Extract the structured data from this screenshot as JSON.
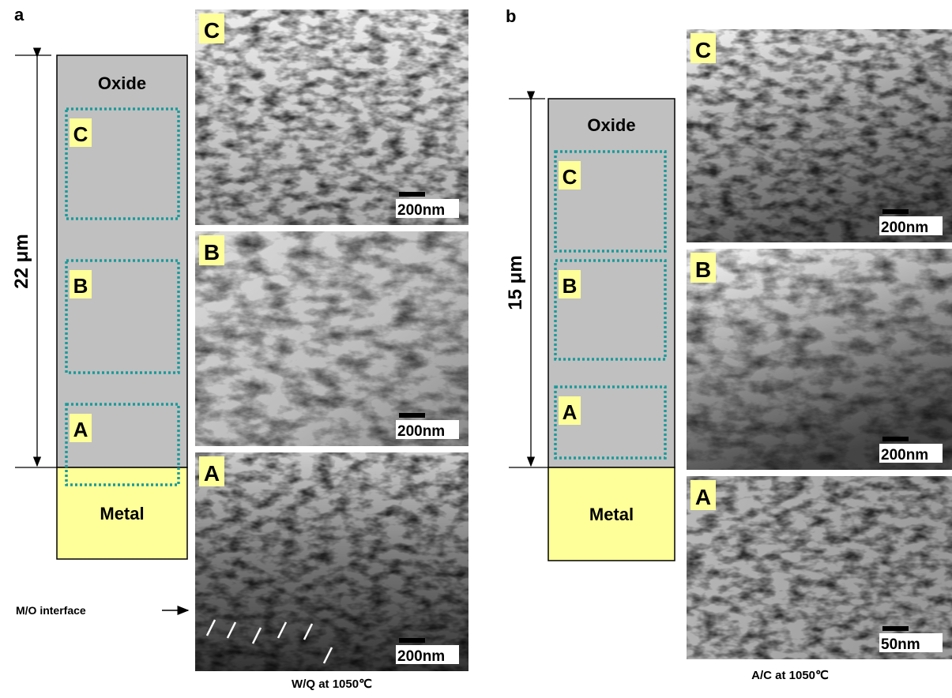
{
  "panels": [
    {
      "letter": "a",
      "thickness": "22 μm",
      "oxide": "Oxide",
      "metal": "Metal",
      "regions": [
        "C",
        "B",
        "A"
      ],
      "images": [
        {
          "label": "C",
          "scale": "200nm"
        },
        {
          "label": "B",
          "scale": "200nm"
        },
        {
          "label": "A",
          "scale": "200nm"
        }
      ],
      "interface": "M/O interface",
      "caption": "W/Q at 1050℃"
    },
    {
      "letter": "b",
      "thickness": "15 μm",
      "oxide": "Oxide",
      "metal": "Metal",
      "regions": [
        "C",
        "B",
        "A"
      ],
      "images": [
        {
          "label": "C",
          "scale": "200nm"
        },
        {
          "label": "B",
          "scale": "200nm"
        },
        {
          "label": "A",
          "scale": "50nm"
        }
      ],
      "caption": "A/C at 1050℃"
    }
  ]
}
